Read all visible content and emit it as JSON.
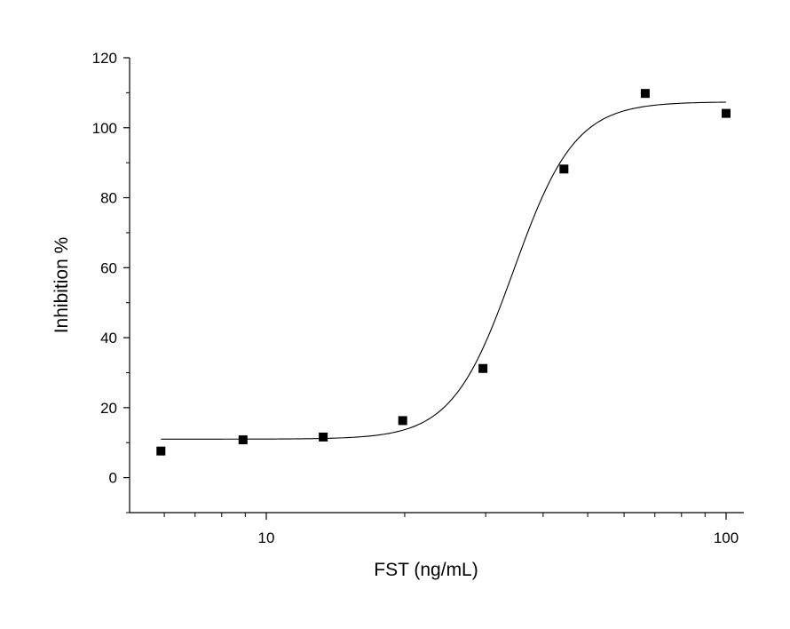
{
  "chart_data": {
    "type": "scatter",
    "title": "",
    "xlabel": "FST (ng/mL)",
    "ylabel": "Inhibition %",
    "xscale": "log",
    "xlim": [
      5.5,
      105
    ],
    "ylim": [
      -10,
      120
    ],
    "x_tick_labels": [
      "10",
      "100"
    ],
    "x_tick_values": [
      10,
      100
    ],
    "y_tick_labels": [
      "0",
      "20",
      "40",
      "60",
      "80",
      "100",
      "120"
    ],
    "y_tick_values": [
      0,
      20,
      40,
      60,
      80,
      100,
      120
    ],
    "grid": false,
    "legend": "none",
    "series": [
      {
        "marker": "square",
        "color": "#000000",
        "x": [
          5.9,
          8.9,
          13.3,
          19.8,
          29.6,
          44.4,
          66.7,
          100
        ],
        "y": [
          7.6,
          10.8,
          11.6,
          16.3,
          31.2,
          88.2,
          109.8,
          104.1
        ]
      }
    ],
    "fit_curve": {
      "model": "four-parameter logistic",
      "color": "#000000",
      "bottom": 11,
      "top": 107.4,
      "ec50": 34.5,
      "hill": 6.5,
      "x_range": [
        5.9,
        100
      ]
    }
  }
}
